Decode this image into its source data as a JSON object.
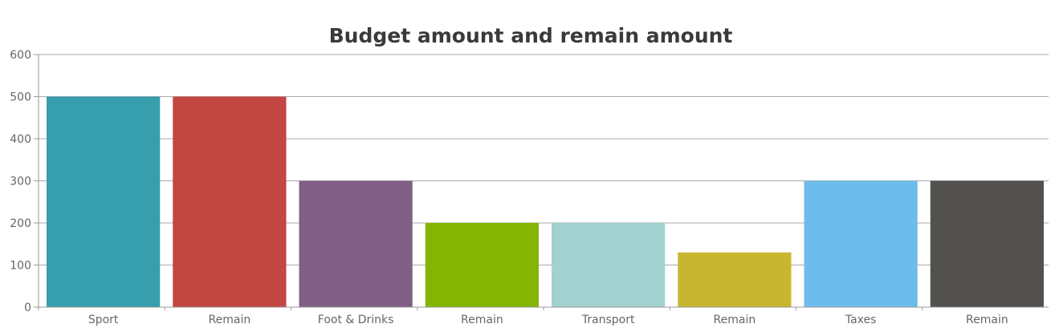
{
  "chart_data": {
    "type": "bar",
    "title": "Budget amount and remain amount",
    "xlabel": "",
    "ylabel": "",
    "ylim": [
      0,
      600
    ],
    "yticks": [
      0,
      100,
      200,
      300,
      400,
      500,
      600
    ],
    "grid": true,
    "categories": [
      "Sport",
      "Remain",
      "Foot & Drinks",
      "Remain",
      "Transport",
      "Remain",
      "Taxes",
      "Remain"
    ],
    "values": [
      500,
      500,
      300,
      200,
      200,
      130,
      300,
      300
    ],
    "colors": [
      "#369EAD",
      "#C24642",
      "#7F6084",
      "#86B402",
      "#A2D1CF",
      "#C8B631",
      "#6DBCEB",
      "#52514E"
    ]
  }
}
